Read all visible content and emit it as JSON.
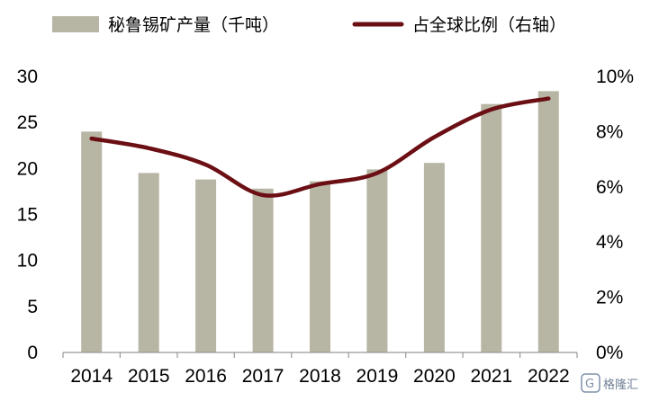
{
  "chart_data": {
    "type": "bar",
    "categories": [
      "2014",
      "2015",
      "2016",
      "2017",
      "2018",
      "2019",
      "2020",
      "2021",
      "2022"
    ],
    "series": [
      {
        "name": "秘鲁锡矿产量（千吨）",
        "type": "bar",
        "axis": "left",
        "color": "#b7b5a3",
        "values": [
          24.0,
          19.5,
          18.8,
          17.8,
          18.6,
          19.9,
          20.6,
          27.0,
          28.4
        ]
      },
      {
        "name": "占全球比例（右轴）",
        "type": "line",
        "axis": "right",
        "color": "#6b0f14",
        "values": [
          7.75,
          7.4,
          6.8,
          5.7,
          6.1,
          6.5,
          7.8,
          8.8,
          9.2
        ]
      }
    ],
    "y_left": {
      "min": 0,
      "max": 30,
      "ticks": [
        "0",
        "5",
        "10",
        "15",
        "20",
        "25",
        "30"
      ]
    },
    "y_right": {
      "min": 0,
      "max": 10,
      "ticks": [
        "0%",
        "2%",
        "4%",
        "6%",
        "8%",
        "10%"
      ]
    },
    "grid": false,
    "legend_position": "top"
  },
  "watermark": {
    "text": "格隆汇"
  }
}
